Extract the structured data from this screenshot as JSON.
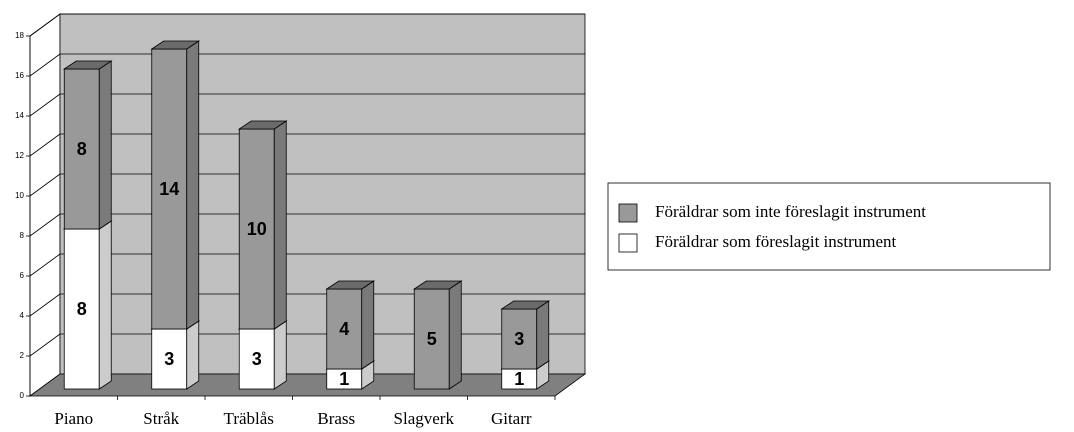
{
  "chart_data": {
    "type": "bar3d_stacked",
    "categories": [
      "Piano",
      "Stråk",
      "Träblås",
      "Brass",
      "Slagverk",
      "Gitarr"
    ],
    "series": [
      {
        "name": "Föräldrar som föreslagit instrument",
        "color": "#ffffff",
        "values": [
          8,
          3,
          3,
          1,
          0,
          1
        ]
      },
      {
        "name": "Föräldrar som inte föreslagit  instrument",
        "color": "#999999",
        "values": [
          8,
          14,
          10,
          4,
          5,
          3
        ]
      }
    ],
    "ylim": [
      0,
      18
    ],
    "yticks": [
      0,
      2,
      4,
      6,
      8,
      10,
      12,
      14,
      16,
      18
    ],
    "grid": true,
    "legend": "right"
  }
}
